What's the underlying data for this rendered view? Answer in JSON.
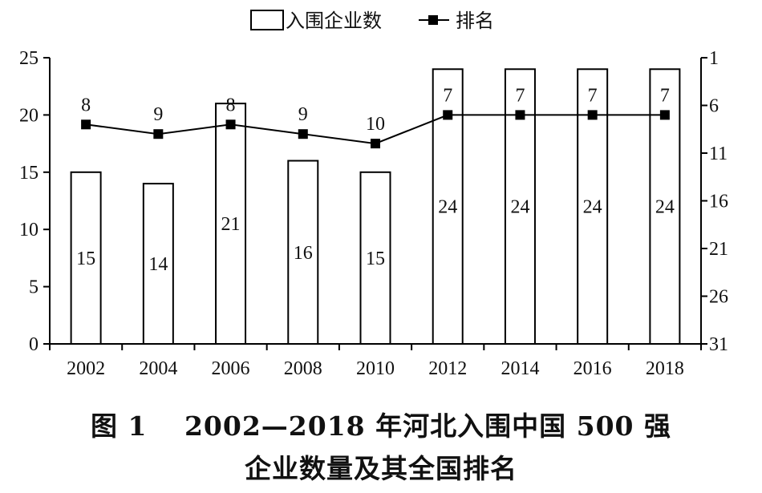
{
  "chart_data": {
    "type": "bar",
    "categories": [
      "2002",
      "2004",
      "2006",
      "2008",
      "2010",
      "2012",
      "2014",
      "2016",
      "2018"
    ],
    "series": [
      {
        "name": "入围企业数",
        "type": "bar",
        "axis": "left",
        "values": [
          15,
          14,
          21,
          16,
          15,
          24,
          24,
          24,
          24
        ]
      },
      {
        "name": "排名",
        "type": "line",
        "axis": "right",
        "values": [
          8,
          9,
          8,
          9,
          10,
          7,
          7,
          7,
          7
        ]
      }
    ],
    "y_left": {
      "range": [
        0,
        25
      ],
      "ticks": [
        0,
        5,
        10,
        15,
        20,
        25
      ]
    },
    "y_right": {
      "range": [
        1,
        31
      ],
      "reversed": true,
      "ticks": [
        1,
        6,
        11,
        16,
        21,
        26,
        31
      ]
    },
    "legend_position": "top-center",
    "grid": false
  },
  "caption": {
    "line1": "图 1　 2002—2018 年河北入围中国 500 强",
    "line2": "企业数量及其全国排名"
  },
  "colors": {
    "bar_fill": "#ffffff",
    "stroke": "#000000",
    "line": "#000000"
  }
}
